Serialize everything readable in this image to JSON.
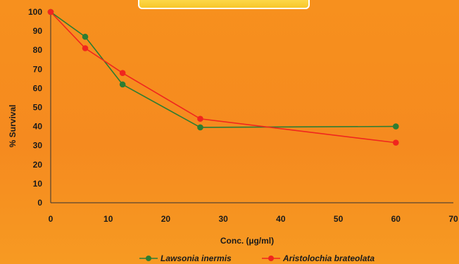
{
  "chart_data": {
    "type": "line",
    "title": "",
    "xlabel": "Conc. (µg/ml)",
    "ylabel": "% Survival",
    "xlim": [
      0,
      70
    ],
    "ylim": [
      0,
      100
    ],
    "x_ticks": [
      0,
      10,
      20,
      30,
      40,
      50,
      60,
      70
    ],
    "y_ticks": [
      0,
      10,
      20,
      30,
      40,
      50,
      60,
      70,
      80,
      90,
      100
    ],
    "grid": false,
    "legend_position": "bottom",
    "series": [
      {
        "name": "Lawsonia inermis",
        "color": "#2e7d32",
        "x": [
          0,
          6,
          12.5,
          26,
          60
        ],
        "y": [
          100,
          87,
          62,
          39.5,
          40
        ]
      },
      {
        "name": "Aristolochia brateolata",
        "color": "#f0261e",
        "x": [
          0,
          6,
          12.5,
          26,
          60
        ],
        "y": [
          100,
          81,
          68,
          44,
          31.5
        ]
      }
    ],
    "title_banner_color": "#fbd33a"
  }
}
